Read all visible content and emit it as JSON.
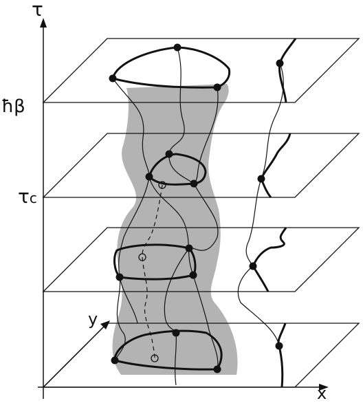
{
  "labels": {
    "tau_axis": "τ",
    "hbar_beta": "ħβ",
    "tau_c": "τ",
    "tau_c_subscript": "c",
    "y_axis": "y",
    "x_axis": "x"
  },
  "colors": {
    "ink": "#111111",
    "shaded_region": "#b3b3b3",
    "background": "#ffffff"
  }
}
